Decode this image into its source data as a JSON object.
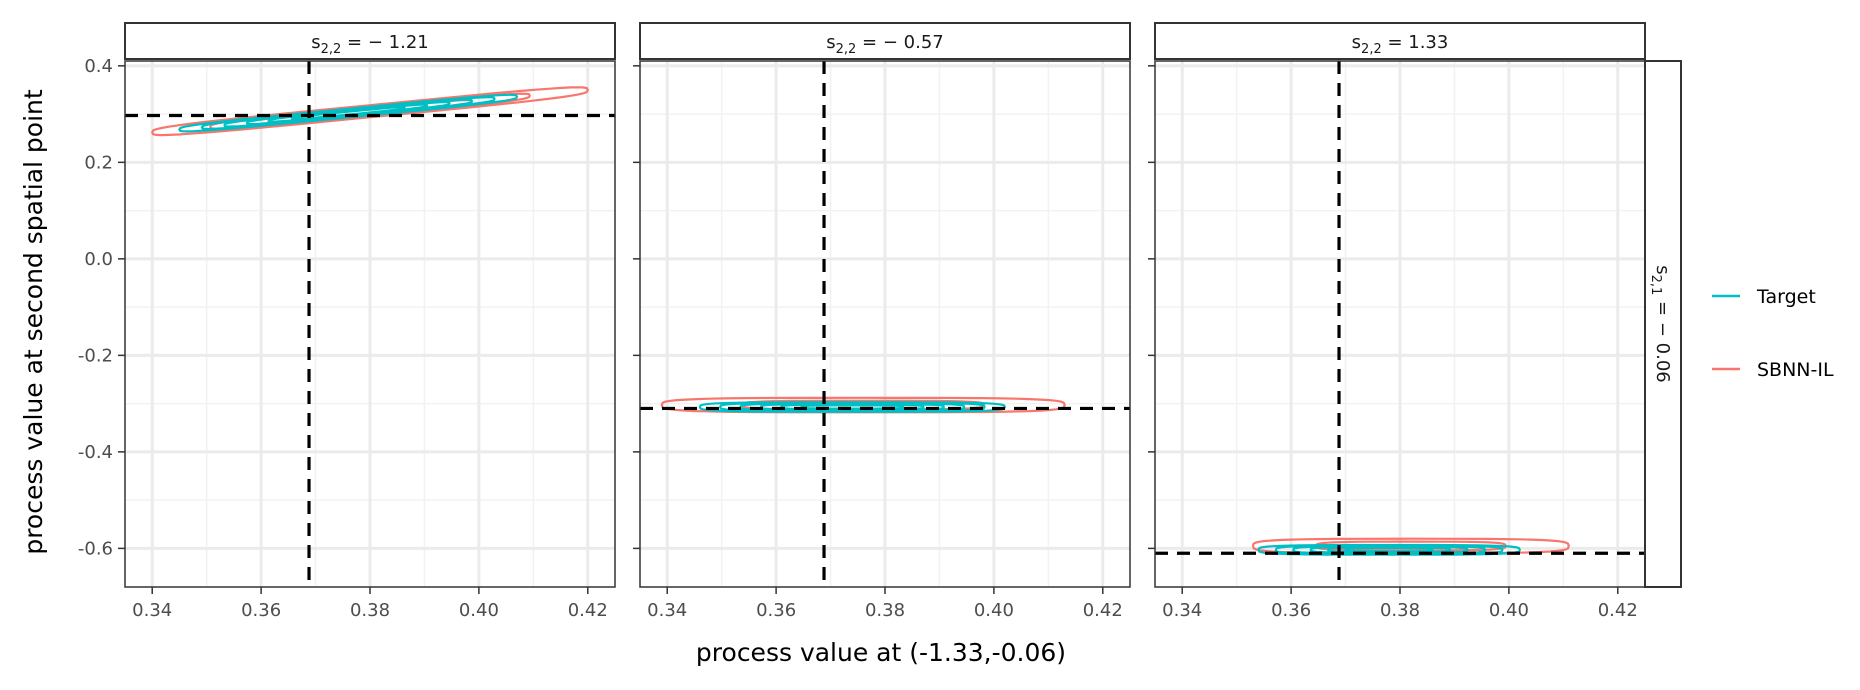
{
  "chart_data": {
    "type": "contour",
    "xlabel": "process value at (-1.33,-0.06)",
    "ylabel": "process value at second spatial point",
    "xlim": [
      0.335,
      0.425
    ],
    "ylim": [
      -0.68,
      0.41
    ],
    "x_ticks": [
      "0.34",
      "0.36",
      "0.38",
      "0.40",
      "0.42"
    ],
    "x_tick_values": [
      0.34,
      0.36,
      0.38,
      0.4,
      0.42
    ],
    "y_ticks": [
      "0.4",
      "0.2",
      "0.0",
      "-0.2",
      "-0.4",
      "-0.6"
    ],
    "y_tick_values": [
      0.4,
      0.2,
      0.0,
      -0.2,
      -0.4,
      -0.6
    ],
    "row_strip": {
      "prefix": "s",
      "sub": "2,1",
      "value": " = − 0.06"
    },
    "legend": {
      "position": "right",
      "entries": [
        {
          "label": "Target",
          "color": "#00BFC4"
        },
        {
          "label": "SBNN-IL",
          "color": "#F8766D"
        }
      ]
    },
    "reference_line_x": 0.3688,
    "panels": [
      {
        "strip": {
          "prefix": "s",
          "sub": "2,2",
          "value": " = − 1.21"
        },
        "reference_line_y": 0.297,
        "series": [
          {
            "name": "Target",
            "center": [
              0.376,
              0.302
            ],
            "half_widths": [
              0.031,
              0.018
            ],
            "slope": 1.1,
            "levels": 6
          },
          {
            "name": "SBNN-IL",
            "center": [
              0.38,
              0.306
            ],
            "half_widths": [
              0.04,
              0.025
            ],
            "slope": 1.1,
            "levels": 3
          }
        ]
      },
      {
        "strip": {
          "prefix": "s",
          "sub": "2,2",
          "value": " = − 0.57"
        },
        "reference_line_y": -0.31,
        "series": [
          {
            "name": "Target",
            "center": [
              0.374,
              -0.307
            ],
            "half_widths": [
              0.028,
              0.02
            ],
            "slope": 0,
            "levels": 6
          },
          {
            "name": "SBNN-IL",
            "center": [
              0.376,
              -0.303
            ],
            "half_widths": [
              0.037,
              0.03
            ],
            "slope": 0,
            "levels": 2
          }
        ]
      },
      {
        "strip": {
          "prefix": "s",
          "sub": "2,2",
          "value": " = 1.33"
        },
        "reference_line_y": -0.61,
        "series": [
          {
            "name": "Target",
            "center": [
              0.378,
              -0.603
            ],
            "half_widths": [
              0.024,
              0.02
            ],
            "slope": 0,
            "levels": 6
          },
          {
            "name": "SBNN-IL",
            "center": [
              0.382,
              -0.595
            ],
            "half_widths": [
              0.029,
              0.03
            ],
            "slope": 0,
            "levels": 2
          }
        ]
      }
    ]
  }
}
